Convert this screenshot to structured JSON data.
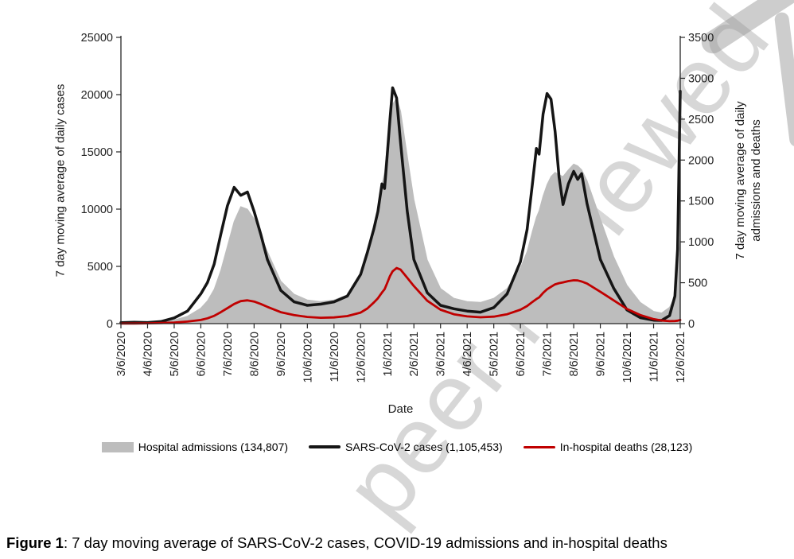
{
  "watermark": {
    "text": "peer reviewed",
    "color": "#c3c3c3"
  },
  "caption": {
    "label": "Figure 1",
    "text": ": 7 day moving average of SARS-CoV-2 cases, COVID-19 admissions and in-hospital deaths"
  },
  "chart_data": {
    "type": "area+line",
    "title": "",
    "xlabel": "Date",
    "grid": false,
    "legend_position": "bottom",
    "left_axis": {
      "label": "7 day moving average of daily cases",
      "min": 0,
      "max": 25000,
      "tick_step": 5000,
      "ticks": [
        0,
        5000,
        10000,
        15000,
        20000,
        25000
      ]
    },
    "right_axis": {
      "label_line1": "7 day moving average of daily",
      "label_line2": "admissions and deaths",
      "min": 0,
      "max": 3500,
      "tick_step": 500,
      "ticks": [
        0,
        500,
        1000,
        1500,
        2000,
        2500,
        3000,
        3500
      ]
    },
    "x_ticks": [
      "3/6/2020",
      "4/6/2020",
      "5/6/2020",
      "6/6/2020",
      "7/6/2020",
      "8/6/2020",
      "9/6/2020",
      "10/6/2020",
      "11/6/2020",
      "12/6/2020",
      "1/6/2021",
      "2/6/2021",
      "3/6/2021",
      "4/6/2021",
      "5/6/2021",
      "6/6/2021",
      "7/6/2021",
      "8/6/2021",
      "9/6/2021",
      "10/6/2021",
      "11/6/2021",
      "12/6/2021"
    ],
    "x_unit": "months since 3/6/2020",
    "x_months_span": 21,
    "x": [
      0,
      0.5,
      1,
      1.5,
      2,
      2.5,
      3,
      3.25,
      3.5,
      3.75,
      4,
      4.25,
      4.5,
      4.75,
      5,
      5.25,
      5.5,
      6,
      6.5,
      7,
      7.5,
      8,
      8.5,
      9,
      9.25,
      9.5,
      9.65,
      9.8,
      9.9,
      10,
      10.1,
      10.2,
      10.35,
      10.5,
      10.75,
      11,
      11.5,
      12,
      12.5,
      13,
      13.5,
      14,
      14.5,
      15,
      15.25,
      15.45,
      15.6,
      15.7,
      15.85,
      16,
      16.15,
      16.3,
      16.45,
      16.6,
      16.8,
      17,
      17.15,
      17.3,
      17.5,
      18,
      18.5,
      19,
      19.5,
      20,
      20.3,
      20.6,
      20.8,
      20.9,
      21
    ],
    "series": [
      {
        "name": "Hospital admissions (134,807)",
        "axis": "right",
        "style": "area",
        "color": "#bdbdbd",
        "width": 1,
        "values": [
          3,
          8,
          15,
          25,
          45,
          90,
          190,
          280,
          420,
          650,
          950,
          1250,
          1430,
          1400,
          1280,
          1080,
          880,
          520,
          360,
          290,
          270,
          290,
          350,
          560,
          800,
          1150,
          1380,
          1700,
          1850,
          2200,
          2480,
          2680,
          2760,
          2600,
          2050,
          1520,
          780,
          430,
          310,
          270,
          260,
          310,
          430,
          680,
          880,
          1130,
          1300,
          1380,
          1560,
          1700,
          1800,
          1850,
          1820,
          1800,
          1880,
          1950,
          1930,
          1880,
          1750,
          1280,
          820,
          470,
          260,
          150,
          130,
          200,
          330,
          600,
          1050
        ]
      },
      {
        "name": "SARS-CoV-2 cases (1,105,453)",
        "axis": "left",
        "style": "line",
        "color": "#151515",
        "width": 3.5,
        "values": [
          80,
          120,
          100,
          180,
          500,
          1100,
          2600,
          3600,
          5200,
          7800,
          10300,
          11900,
          11200,
          11500,
          9800,
          7800,
          5600,
          2900,
          1900,
          1600,
          1700,
          1900,
          2400,
          4300,
          6200,
          8300,
          9800,
          12200,
          11800,
          14800,
          17800,
          20600,
          19700,
          15800,
          9800,
          5600,
          2700,
          1600,
          1300,
          1100,
          1000,
          1400,
          2600,
          5400,
          8200,
          12200,
          15300,
          14800,
          18300,
          20100,
          19600,
          16800,
          12800,
          10400,
          12200,
          13300,
          12600,
          13100,
          10500,
          5600,
          3100,
          1200,
          520,
          300,
          280,
          700,
          2400,
          6500,
          20300
        ]
      },
      {
        "name": "In-hospital deaths (28,123)",
        "axis": "right",
        "style": "line",
        "color": "#c00000",
        "width": 2.8,
        "values": [
          1,
          2,
          4,
          8,
          14,
          25,
          45,
          65,
          95,
          140,
          190,
          240,
          275,
          285,
          270,
          240,
          205,
          140,
          105,
          82,
          72,
          76,
          92,
          135,
          185,
          260,
          310,
          380,
          420,
          500,
          580,
          640,
          680,
          660,
          560,
          460,
          280,
          170,
          115,
          88,
          78,
          86,
          115,
          170,
          215,
          265,
          300,
          320,
          375,
          420,
          450,
          480,
          495,
          505,
          520,
          530,
          528,
          515,
          490,
          390,
          285,
          180,
          105,
          55,
          38,
          30,
          32,
          36,
          45
        ]
      }
    ]
  }
}
